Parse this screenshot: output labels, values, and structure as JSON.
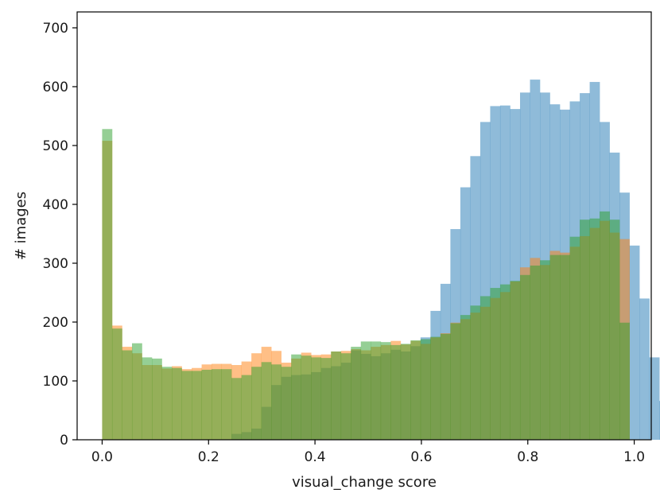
{
  "chart_data": {
    "type": "histogram",
    "title": "",
    "xlabel": "visual_change score",
    "ylabel": "# images",
    "xlim": [
      -0.047,
      1.032
    ],
    "ylim": [
      0,
      727
    ],
    "xticks": [
      "0.0",
      "0.2",
      "0.4",
      "0.6",
      "0.8",
      "1.0"
    ],
    "yticks": [
      "0",
      "100",
      "200",
      "300",
      "400",
      "500",
      "600",
      "700"
    ],
    "grid": false,
    "legend": "none",
    "bin_width": 0.0187,
    "series": [
      {
        "color": "#1f77b4",
        "opacity": 0.5,
        "bins_start": 0.0,
        "values": [
          0,
          0,
          0,
          0,
          0,
          0,
          0,
          0,
          0,
          0,
          0,
          0,
          0,
          10,
          13,
          19,
          56,
          93,
          107,
          110,
          111,
          115,
          122,
          125,
          131,
          152,
          146,
          142,
          147,
          153,
          150,
          159,
          174,
          219,
          265,
          358,
          429,
          482,
          540,
          567,
          568,
          562,
          590,
          612,
          590,
          570,
          561,
          575,
          589,
          608,
          540,
          488,
          420,
          330,
          240,
          140,
          66,
          39,
          28,
          19,
          11,
          4,
          3,
          2
        ]
      },
      {
        "color": "#ff7f0e",
        "opacity": 0.5,
        "bins_start": 0.0,
        "values": [
          508,
          194,
          158,
          147,
          127,
          127,
          121,
          125,
          120,
          122,
          128,
          129,
          129,
          127,
          133,
          147,
          158,
          151,
          131,
          138,
          148,
          144,
          145,
          150,
          151,
          154,
          152,
          158,
          161,
          168,
          162,
          168,
          163,
          174,
          181,
          199,
          205,
          216,
          226,
          241,
          251,
          269,
          293,
          309,
          297,
          321,
          318,
          328,
          346,
          360,
          372,
          352,
          341,
          0
        ]
      },
      {
        "color": "#2ca02c",
        "opacity": 0.5,
        "bins_start": 0.0,
        "values": [
          528,
          189,
          152,
          164,
          140,
          138,
          124,
          122,
          117,
          117,
          119,
          120,
          120,
          105,
          110,
          124,
          132,
          128,
          124,
          145,
          143,
          140,
          139,
          150,
          147,
          158,
          167,
          167,
          166,
          161,
          163,
          169,
          171,
          175,
          180,
          198,
          212,
          228,
          244,
          258,
          264,
          270,
          280,
          296,
          305,
          314,
          314,
          345,
          374,
          376,
          388,
          374,
          199,
          0
        ]
      }
    ]
  }
}
